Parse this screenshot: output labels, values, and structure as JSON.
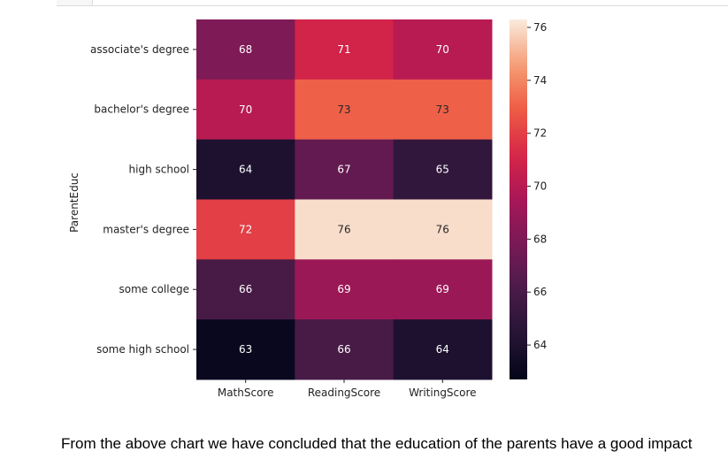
{
  "chart_data": {
    "type": "heatmap",
    "ylabel": "ParentEduc",
    "xlabel": "",
    "rows": [
      "associate's degree",
      "bachelor's degree",
      "high school",
      "master's degree",
      "some college",
      "some high school"
    ],
    "columns": [
      "MathScore",
      "ReadingScore",
      "WritingScore"
    ],
    "values": [
      [
        68,
        71,
        70
      ],
      [
        70,
        73,
        73
      ],
      [
        64,
        67,
        65
      ],
      [
        72,
        76,
        76
      ],
      [
        66,
        69,
        69
      ],
      [
        63,
        66,
        64
      ]
    ],
    "colorbar": {
      "ticks": [
        76,
        74,
        72,
        70,
        68,
        66,
        64
      ],
      "range": [
        62.7,
        76.3
      ]
    },
    "colormap": "rocket"
  },
  "caption": "From the above chart we have concluded that the education of the parents have a good impact"
}
